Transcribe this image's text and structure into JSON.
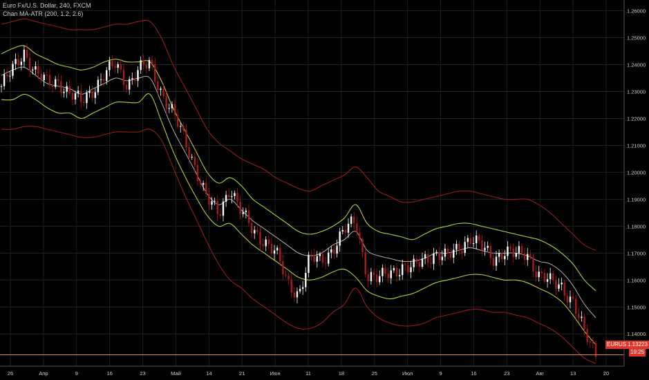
{
  "header": {
    "symbol_title": "Euro Fx/U.S. Dollar, 240, FXCM",
    "indicator_title": "Chan MA-ATR (200, 1.2, 2.6)"
  },
  "price_tag": {
    "symbol": "EURUSD",
    "price": "1.13223",
    "countdown": "19:25",
    "color": "#e0352b"
  },
  "chart_data": {
    "type": "candlestick",
    "title": "Euro Fx/U.S. Dollar, 240, FXCM",
    "indicator": "Chan MA-ATR (200, 1.2, 2.6)",
    "y_ticks": [
      "1.26000",
      "1.25000",
      "1.24000",
      "1.23000",
      "1.22000",
      "1.21000",
      "1.20000",
      "1.19000",
      "1.18000",
      "1.17000",
      "1.16000",
      "1.15000",
      "1.14000"
    ],
    "ylim": [
      1.128,
      1.264
    ],
    "x_ticks": [
      "26",
      "Апр",
      "9",
      "16",
      "23",
      "Май",
      "14",
      "21",
      "Июн",
      "11",
      "18",
      "25",
      "Июл",
      "9",
      "16",
      "23",
      "Авг",
      "13",
      "20"
    ],
    "grid": true,
    "colors": {
      "candle_up": "#ffffff",
      "candle_down": "#a61d1d",
      "ma": "#e6e6e6",
      "inner_band": "#c8c832",
      "outer_band": "#9b1c1c",
      "price_line": "#d88a3c"
    },
    "series": [
      {
        "name": "",
        "role": "close",
        "values": [
          1.232,
          1.238,
          1.245,
          1.237,
          1.233,
          1.234,
          1.229,
          1.226,
          1.231,
          1.236,
          1.24,
          1.233,
          1.238,
          1.24,
          1.23,
          1.222,
          1.212,
          1.202,
          1.19,
          1.184,
          1.195,
          1.185,
          1.178,
          1.175,
          1.17,
          1.159,
          1.155,
          1.168,
          1.167,
          1.172,
          1.178,
          1.182,
          1.162,
          1.16,
          1.163,
          1.165,
          1.164,
          1.168,
          1.17,
          1.168,
          1.172,
          1.176,
          1.172,
          1.168,
          1.171,
          1.169,
          1.17,
          1.162,
          1.159,
          1.158,
          1.152,
          1.14,
          1.133
        ]
      },
      {
        "name": "",
        "role": "ma",
        "values": [
          1.236,
          1.238,
          1.239,
          1.236,
          1.233,
          1.232,
          1.231,
          1.229,
          1.231,
          1.233,
          1.235,
          1.234,
          1.235,
          1.235,
          1.226,
          1.216,
          1.208,
          1.2,
          1.192,
          1.188,
          1.19,
          1.186,
          1.182,
          1.179,
          1.176,
          1.173,
          1.17,
          1.169,
          1.17,
          1.173,
          1.175,
          1.178,
          1.171,
          1.169,
          1.168,
          1.167,
          1.167,
          1.168,
          1.17,
          1.17,
          1.171,
          1.172,
          1.171,
          1.17,
          1.17,
          1.17,
          1.169,
          1.167,
          1.166,
          1.163,
          1.158,
          1.151,
          1.146
        ]
      },
      {
        "name": "",
        "role": "band_upper_inner",
        "values": [
          1.244,
          1.246,
          1.247,
          1.244,
          1.242,
          1.24,
          1.239,
          1.238,
          1.239,
          1.241,
          1.242,
          1.241,
          1.241,
          1.241,
          1.234,
          1.224,
          1.216,
          1.208,
          1.2,
          1.196,
          1.198,
          1.195,
          1.19,
          1.187,
          1.184,
          1.181,
          1.178,
          1.177,
          1.178,
          1.18,
          1.183,
          1.188,
          1.181,
          1.178,
          1.177,
          1.176,
          1.175,
          1.177,
          1.179,
          1.18,
          1.181,
          1.181,
          1.18,
          1.179,
          1.178,
          1.177,
          1.176,
          1.175,
          1.173,
          1.17,
          1.166,
          1.16,
          1.156
        ]
      },
      {
        "name": "",
        "role": "band_lower_inner",
        "values": [
          1.227,
          1.227,
          1.229,
          1.227,
          1.224,
          1.222,
          1.222,
          1.22,
          1.222,
          1.224,
          1.226,
          1.226,
          1.226,
          1.229,
          1.219,
          1.208,
          1.199,
          1.191,
          1.184,
          1.18,
          1.181,
          1.177,
          1.173,
          1.17,
          1.167,
          1.164,
          1.161,
          1.16,
          1.161,
          1.163,
          1.164,
          1.161,
          1.156,
          1.154,
          1.153,
          1.154,
          1.155,
          1.157,
          1.159,
          1.16,
          1.161,
          1.162,
          1.162,
          1.161,
          1.16,
          1.16,
          1.159,
          1.157,
          1.155,
          1.152,
          1.147,
          1.141,
          1.136
        ]
      },
      {
        "name": "",
        "role": "band_upper_outer",
        "values": [
          1.255,
          1.256,
          1.257,
          1.256,
          1.255,
          1.254,
          1.253,
          1.253,
          1.253,
          1.254,
          1.255,
          1.255,
          1.256,
          1.256,
          1.25,
          1.24,
          1.232,
          1.224,
          1.216,
          1.211,
          1.208,
          1.205,
          1.203,
          1.201,
          1.198,
          1.196,
          1.194,
          1.193,
          1.195,
          1.197,
          1.199,
          1.202,
          1.198,
          1.193,
          1.191,
          1.189,
          1.189,
          1.19,
          1.191,
          1.192,
          1.193,
          1.193,
          1.192,
          1.191,
          1.19,
          1.19,
          1.19,
          1.188,
          1.185,
          1.181,
          1.177,
          1.173,
          1.171
        ]
      },
      {
        "name": "",
        "role": "band_lower_outer",
        "values": [
          1.216,
          1.216,
          1.217,
          1.217,
          1.216,
          1.215,
          1.214,
          1.213,
          1.213,
          1.214,
          1.215,
          1.215,
          1.215,
          1.216,
          1.212,
          1.202,
          1.192,
          1.183,
          1.174,
          1.166,
          1.16,
          1.157,
          1.153,
          1.15,
          1.147,
          1.144,
          1.142,
          1.142,
          1.144,
          1.148,
          1.151,
          1.157,
          1.15,
          1.146,
          1.144,
          1.143,
          1.143,
          1.144,
          1.146,
          1.147,
          1.148,
          1.149,
          1.149,
          1.148,
          1.148,
          1.147,
          1.146,
          1.144,
          1.142,
          1.139,
          1.135,
          1.131,
          1.129
        ]
      }
    ],
    "last_price": 1.13223
  }
}
